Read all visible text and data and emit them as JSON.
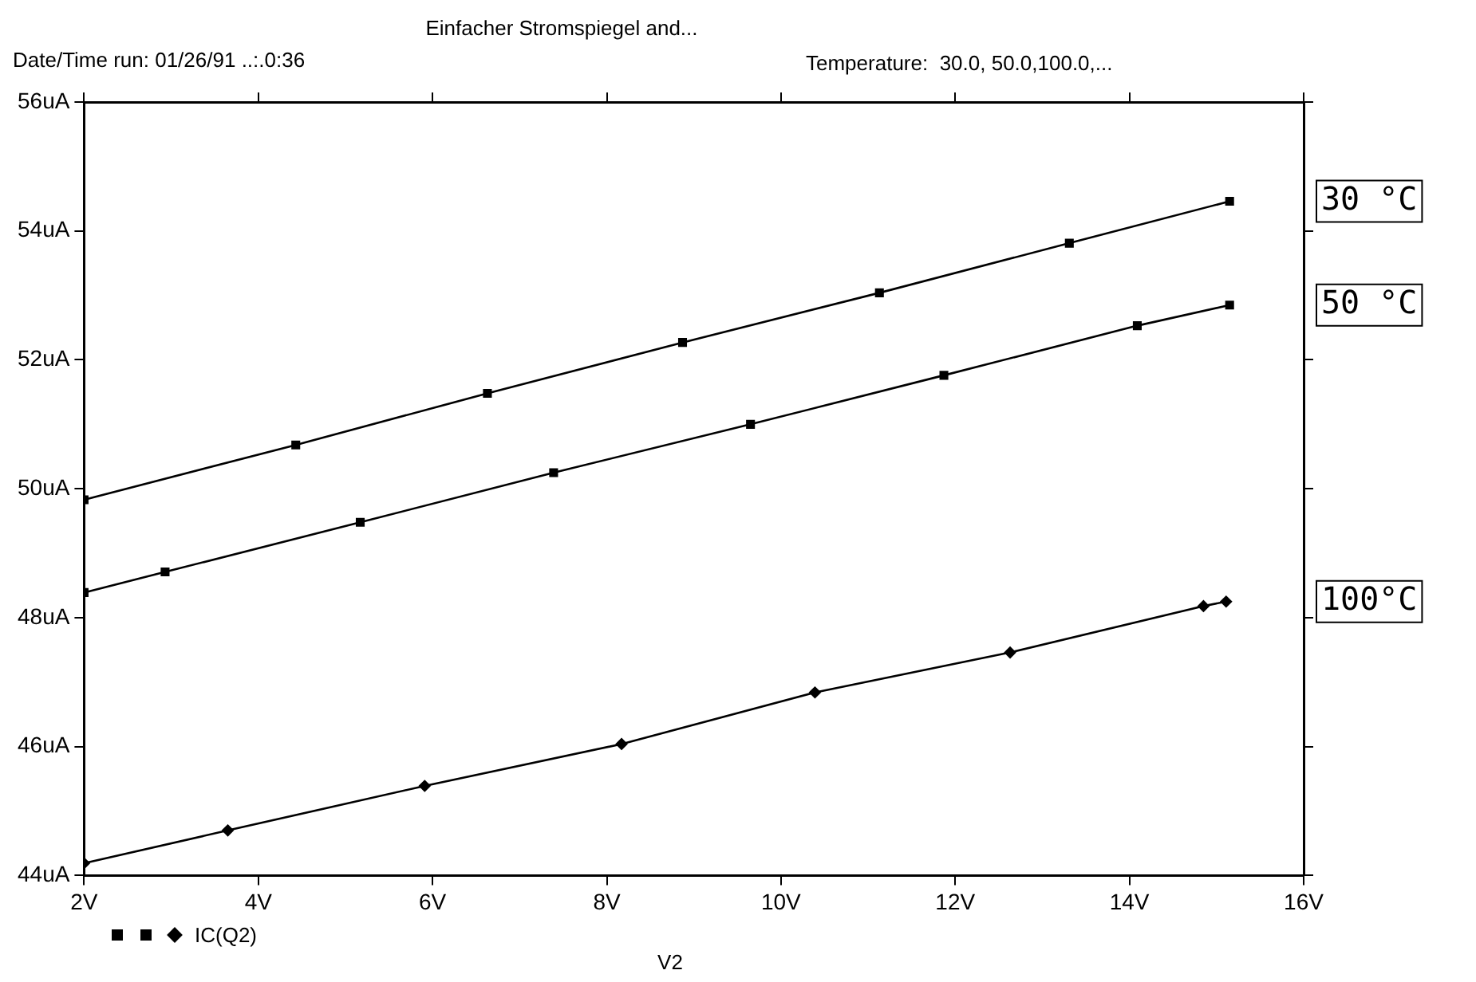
{
  "chart_data": {
    "type": "line",
    "title": "Einfacher Stromspiegel and...",
    "annotations": [
      "Date/Time run: 01/26/91 ..:.0:36",
      "Temperature:  30.0, 50.0,100.0,..."
    ],
    "xlabel": "V2",
    "legend_title": "IC(Q2)",
    "legend": "right",
    "xlim": [
      2,
      16
    ],
    "xticks": [
      {
        "value": 2,
        "label": "2V"
      },
      {
        "value": 4,
        "label": "4V"
      },
      {
        "value": 6,
        "label": "6V"
      },
      {
        "value": 8,
        "label": "8V"
      },
      {
        "value": 10,
        "label": "10V"
      },
      {
        "value": 12,
        "label": "12V"
      },
      {
        "value": 14,
        "label": "14V"
      },
      {
        "value": 16,
        "label": "16V"
      }
    ],
    "ylim": [
      44,
      56
    ],
    "yticks": [
      {
        "value": 44,
        "label": "44uA"
      },
      {
        "value": 46,
        "label": "46uA"
      },
      {
        "value": 48,
        "label": "48uA"
      },
      {
        "value": 50,
        "label": "50uA"
      },
      {
        "value": 52,
        "label": "52uA"
      },
      {
        "value": 54,
        "label": "54uA"
      },
      {
        "value": 56,
        "label": "56uA"
      }
    ],
    "grid": false,
    "line_style": "solid",
    "series": [
      {
        "name": "30 °C",
        "color": "#000000",
        "marker": "square",
        "x": [
          2,
          4.43,
          6.63,
          8.87,
          11.13,
          13.31,
          15.15
        ],
        "values": [
          49.83,
          50.68,
          51.48,
          52.27,
          53.04,
          53.81,
          54.46
        ]
      },
      {
        "name": "50 °C",
        "color": "#000000",
        "marker": "square",
        "x": [
          2,
          2.93,
          5.17,
          7.39,
          9.65,
          11.87,
          14.09,
          15.15
        ],
        "values": [
          48.39,
          48.71,
          49.48,
          50.25,
          51.0,
          51.76,
          52.53,
          52.85
        ]
      },
      {
        "name": "100°C",
        "color": "#000000",
        "marker": "diamond",
        "x": [
          2,
          3.65,
          5.91,
          8.17,
          10.39,
          12.63,
          14.85,
          15.11
        ],
        "values": [
          44.19,
          44.7,
          45.39,
          46.04,
          46.84,
          47.46,
          48.18,
          48.25
        ]
      }
    ]
  }
}
